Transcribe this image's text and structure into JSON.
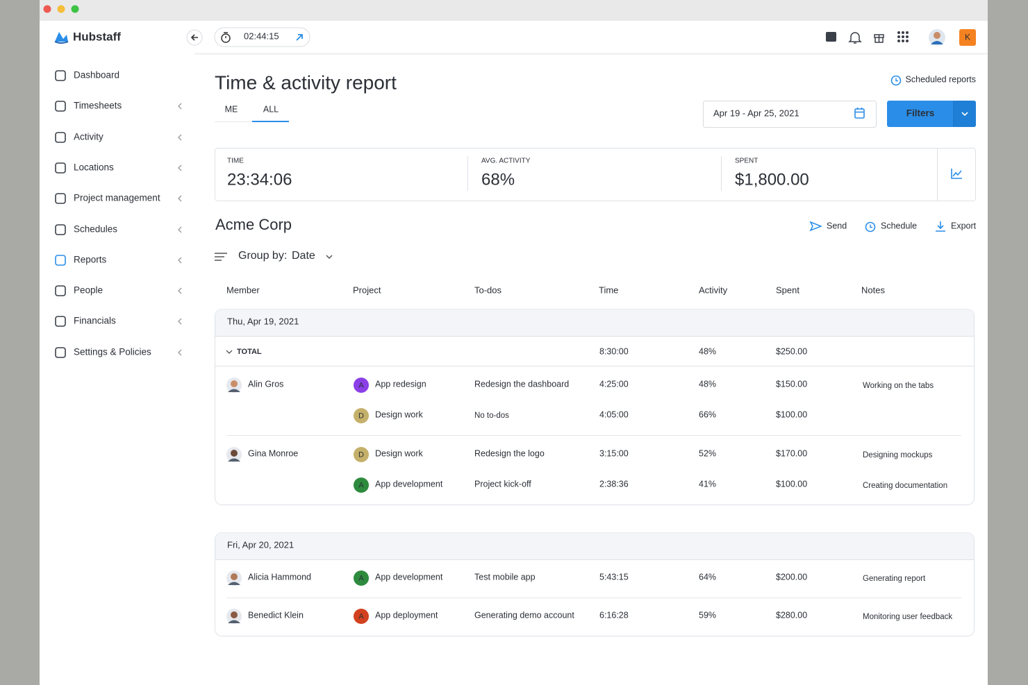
{
  "window": {
    "brand": "Hubstaff"
  },
  "sidebar": {
    "items": [
      {
        "label": "Dashboard"
      },
      {
        "label": "Timesheets",
        "expandable": true
      },
      {
        "label": "Activity",
        "expandable": true
      },
      {
        "label": "Locations",
        "expandable": true
      },
      {
        "label": "Project management",
        "expandable": true
      },
      {
        "label": "Schedules",
        "expandable": true
      },
      {
        "label": "Reports",
        "expandable": true,
        "active": true
      },
      {
        "label": "People",
        "expandable": true
      },
      {
        "label": "Financials",
        "expandable": true
      },
      {
        "label": "Settings & Policies",
        "expandable": true
      }
    ]
  },
  "topbar": {
    "timer": "02:44:15",
    "avatar_initial": "K"
  },
  "header": {
    "title": "Time & activity report",
    "tabs": [
      "ME",
      "ALL"
    ],
    "active_tab": 1,
    "scheduled_reports": "Scheduled reports",
    "date_range": "Apr 19 - Apr 25, 2021",
    "filters": "Filters"
  },
  "summary": [
    {
      "label": "TIME",
      "value": "23:34:06"
    },
    {
      "label": "AVG. ACTIVITY",
      "value": "68%"
    },
    {
      "label": "SPENT",
      "value": "$1,800.00"
    }
  ],
  "report": {
    "company": "Acme Corp",
    "actions": [
      "Send",
      "Schedule",
      "Export"
    ],
    "group_by_label": "Group by:",
    "group_by_value": "Date",
    "columns": [
      "Member",
      "Project",
      "To-dos",
      "Time",
      "Activity",
      "Spent",
      "Notes"
    ],
    "groups": [
      {
        "date": "Thu, Apr 19, 2021",
        "total": {
          "label": "TOTAL",
          "time": "8:30:00",
          "activity": "48%",
          "spent": "$250.00"
        },
        "members": [
          {
            "name": "Alin Gros",
            "entries": [
              {
                "initial": "A",
                "color": "#8b3fe6",
                "project": "App redesign",
                "todo": "Redesign the dashboard",
                "time": "4:25:00",
                "activity": "48%",
                "spent": "$150.00",
                "notes": "Working on the tabs"
              },
              {
                "initial": "D",
                "color": "#c4b06a",
                "project": "Design work",
                "todo": "No to-dos",
                "muted": true,
                "time": "4:05:00",
                "activity": "66%",
                "spent": "$100.00"
              }
            ]
          },
          {
            "name": "Gina Monroe",
            "entries": [
              {
                "initial": "D",
                "color": "#c4b06a",
                "project": "Design work",
                "todo": "Redesign the logo",
                "time": "3:15:00",
                "activity": "52%",
                "spent": "$170.00",
                "notes": "Designing mockups"
              },
              {
                "initial": "A",
                "color": "#2e8b3e",
                "project": "App development",
                "todo": "Project kick-off",
                "time": "2:38:36",
                "activity": "41%",
                "spent": "$100.00",
                "notes": "Creating documentation"
              }
            ]
          }
        ]
      },
      {
        "date": "Fri, Apr 20, 2021",
        "members": [
          {
            "name": "Alicia Hammond",
            "entries": [
              {
                "initial": "A",
                "color": "#2e8b3e",
                "project": "App development",
                "todo": "Test mobile app",
                "time": "5:43:15",
                "activity": "64%",
                "spent": "$200.00",
                "notes": "Generating report"
              }
            ]
          },
          {
            "name": "Benedict Klein",
            "entries": [
              {
                "initial": "A",
                "color": "#d2421f",
                "project": "App deployment",
                "todo": "Generating demo account",
                "time": "6:16:28",
                "activity": "59%",
                "spent": "$280.00",
                "notes": "Monitoring user feedback"
              }
            ]
          }
        ]
      }
    ]
  }
}
